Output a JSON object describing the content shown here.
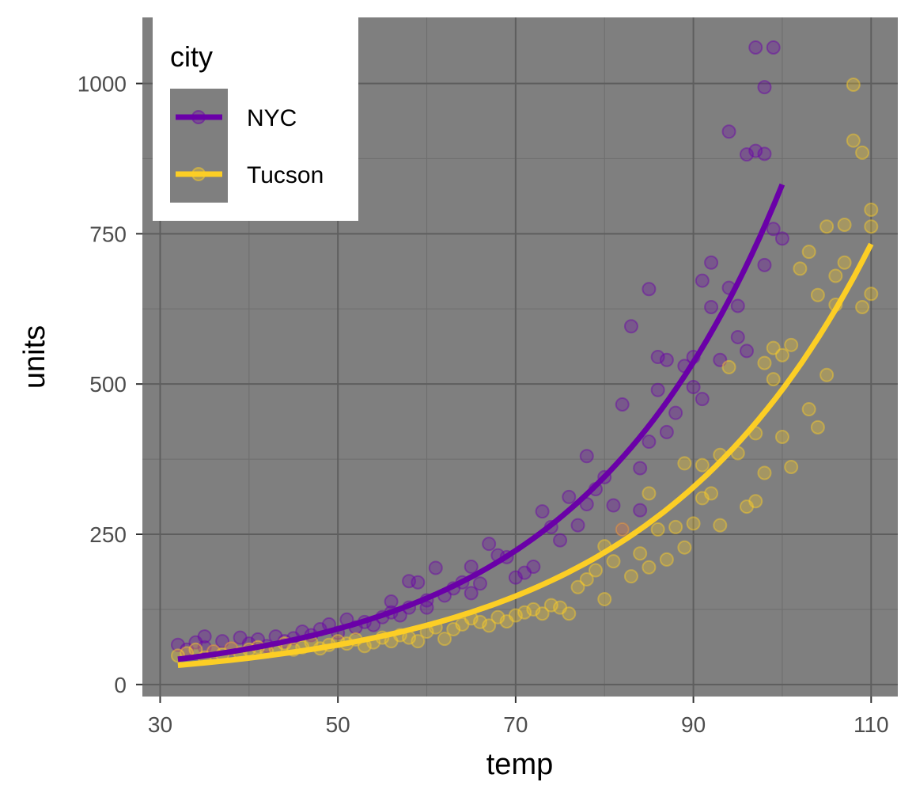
{
  "chart_data": {
    "type": "scatter",
    "xlabel": "temp",
    "ylabel": "units",
    "xlim": [
      28,
      113
    ],
    "ylim": [
      -20,
      1110
    ],
    "x_ticks": [
      30,
      50,
      70,
      90,
      110
    ],
    "y_ticks": [
      0,
      250,
      500,
      750,
      1000
    ],
    "x_minor": [
      40,
      60,
      80,
      100
    ],
    "y_minor": [
      125,
      375,
      625,
      875
    ],
    "grid": true,
    "panel_background": "#7f7f7f",
    "legend": {
      "title": "city",
      "position": "top-left",
      "entries": [
        "NYC",
        "Tucson"
      ]
    },
    "series": [
      {
        "name": "NYC",
        "color": "#6a00a8",
        "fit_line": {
          "type": "exponential",
          "x_range": [
            32,
            100
          ],
          "start": 42,
          "end": 832
        },
        "points": [
          [
            32,
            66
          ],
          [
            33,
            58
          ],
          [
            34,
            70
          ],
          [
            35,
            62
          ],
          [
            35,
            80
          ],
          [
            36,
            55
          ],
          [
            37,
            72
          ],
          [
            38,
            60
          ],
          [
            39,
            78
          ],
          [
            40,
            68
          ],
          [
            41,
            75
          ],
          [
            42,
            64
          ],
          [
            43,
            80
          ],
          [
            44,
            72
          ],
          [
            45,
            77
          ],
          [
            46,
            88
          ],
          [
            47,
            82
          ],
          [
            48,
            92
          ],
          [
            49,
            100
          ],
          [
            50,
            86
          ],
          [
            51,
            108
          ],
          [
            52,
            95
          ],
          [
            53,
            104
          ],
          [
            54,
            99
          ],
          [
            55,
            112
          ],
          [
            56,
            120
          ],
          [
            56,
            138
          ],
          [
            57,
            115
          ],
          [
            58,
            128
          ],
          [
            58,
            172
          ],
          [
            59,
            170
          ],
          [
            60,
            140
          ],
          [
            60,
            128
          ],
          [
            61,
            194
          ],
          [
            62,
            148
          ],
          [
            63,
            160
          ],
          [
            64,
            170
          ],
          [
            65,
            152
          ],
          [
            65,
            196
          ],
          [
            66,
            168
          ],
          [
            67,
            234
          ],
          [
            68,
            215
          ],
          [
            69,
            212
          ],
          [
            70,
            178
          ],
          [
            71,
            186
          ],
          [
            72,
            196
          ],
          [
            73,
            288
          ],
          [
            74,
            262
          ],
          [
            75,
            240
          ],
          [
            76,
            312
          ],
          [
            77,
            265
          ],
          [
            78,
            300
          ],
          [
            78,
            380
          ],
          [
            79,
            325
          ],
          [
            80,
            345
          ],
          [
            81,
            298
          ],
          [
            82,
            258
          ],
          [
            82,
            466
          ],
          [
            83,
            596
          ],
          [
            84,
            360
          ],
          [
            84,
            290
          ],
          [
            85,
            404
          ],
          [
            85,
            658
          ],
          [
            86,
            545
          ],
          [
            86,
            490
          ],
          [
            87,
            540
          ],
          [
            87,
            420
          ],
          [
            88,
            452
          ],
          [
            89,
            530
          ],
          [
            90,
            545
          ],
          [
            90,
            495
          ],
          [
            91,
            672
          ],
          [
            91,
            475
          ],
          [
            92,
            702
          ],
          [
            92,
            628
          ],
          [
            93,
            540
          ],
          [
            94,
            660
          ],
          [
            94,
            920
          ],
          [
            95,
            578
          ],
          [
            95,
            630
          ],
          [
            96,
            555
          ],
          [
            96,
            882
          ],
          [
            97,
            888
          ],
          [
            97,
            1060
          ],
          [
            98,
            698
          ],
          [
            98,
            883
          ],
          [
            98,
            994
          ],
          [
            99,
            1060
          ],
          [
            99,
            758
          ],
          [
            100,
            742
          ]
        ]
      },
      {
        "name": "Tucson",
        "color": "#fcce25",
        "fit_line": {
          "type": "exponential",
          "x_range": [
            32,
            110
          ],
          "start": 32,
          "end": 733
        },
        "points": [
          [
            32,
            48
          ],
          [
            33,
            52
          ],
          [
            34,
            58
          ],
          [
            35,
            45
          ],
          [
            36,
            55
          ],
          [
            37,
            50
          ],
          [
            38,
            60
          ],
          [
            39,
            52
          ],
          [
            40,
            58
          ],
          [
            41,
            62
          ],
          [
            42,
            55
          ],
          [
            43,
            60
          ],
          [
            44,
            68
          ],
          [
            45,
            58
          ],
          [
            46,
            62
          ],
          [
            47,
            70
          ],
          [
            48,
            60
          ],
          [
            49,
            66
          ],
          [
            50,
            72
          ],
          [
            51,
            68
          ],
          [
            52,
            75
          ],
          [
            53,
            64
          ],
          [
            54,
            70
          ],
          [
            55,
            78
          ],
          [
            56,
            72
          ],
          [
            57,
            82
          ],
          [
            58,
            78
          ],
          [
            59,
            72
          ],
          [
            60,
            88
          ],
          [
            61,
            95
          ],
          [
            62,
            76
          ],
          [
            63,
            92
          ],
          [
            64,
            100
          ],
          [
            65,
            110
          ],
          [
            66,
            104
          ],
          [
            67,
            98
          ],
          [
            68,
            112
          ],
          [
            69,
            105
          ],
          [
            70,
            115
          ],
          [
            71,
            120
          ],
          [
            72,
            125
          ],
          [
            73,
            118
          ],
          [
            74,
            132
          ],
          [
            75,
            128
          ],
          [
            76,
            118
          ],
          [
            77,
            162
          ],
          [
            78,
            175
          ],
          [
            79,
            190
          ],
          [
            80,
            142
          ],
          [
            80,
            230
          ],
          [
            81,
            205
          ],
          [
            82,
            258
          ],
          [
            83,
            180
          ],
          [
            84,
            218
          ],
          [
            85,
            195
          ],
          [
            85,
            318
          ],
          [
            86,
            258
          ],
          [
            87,
            208
          ],
          [
            88,
            262
          ],
          [
            89,
            228
          ],
          [
            89,
            368
          ],
          [
            90,
            268
          ],
          [
            91,
            310
          ],
          [
            91,
            365
          ],
          [
            92,
            318
          ],
          [
            93,
            382
          ],
          [
            93,
            265
          ],
          [
            94,
            528
          ],
          [
            95,
            385
          ],
          [
            96,
            296
          ],
          [
            97,
            305
          ],
          [
            97,
            418
          ],
          [
            98,
            352
          ],
          [
            98,
            535
          ],
          [
            99,
            508
          ],
          [
            99,
            560
          ],
          [
            100,
            412
          ],
          [
            100,
            548
          ],
          [
            101,
            362
          ],
          [
            101,
            565
          ],
          [
            102,
            692
          ],
          [
            103,
            720
          ],
          [
            103,
            458
          ],
          [
            104,
            428
          ],
          [
            104,
            648
          ],
          [
            105,
            762
          ],
          [
            105,
            515
          ],
          [
            106,
            632
          ],
          [
            106,
            680
          ],
          [
            107,
            702
          ],
          [
            107,
            765
          ],
          [
            108,
            905
          ],
          [
            108,
            998
          ],
          [
            109,
            628
          ],
          [
            109,
            885
          ],
          [
            110,
            790
          ],
          [
            110,
            762
          ],
          [
            110,
            650
          ]
        ]
      }
    ]
  }
}
